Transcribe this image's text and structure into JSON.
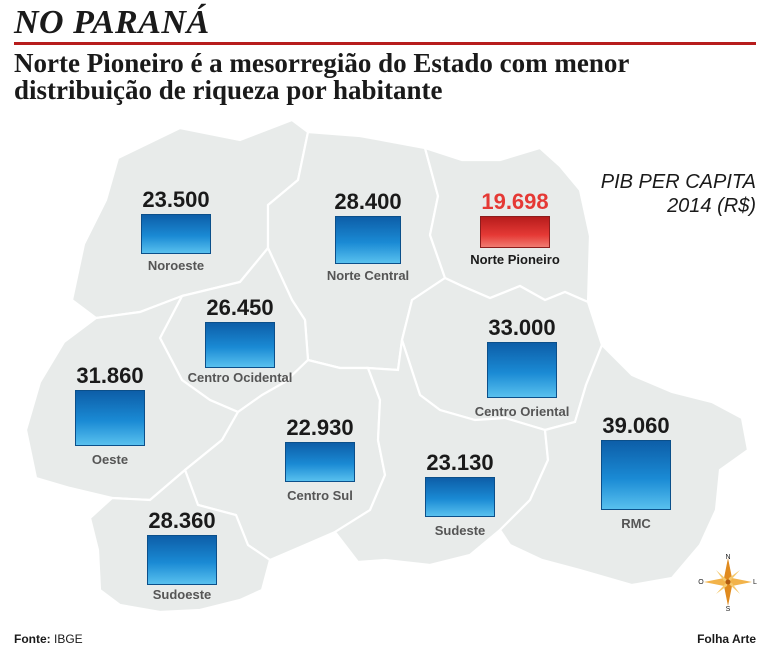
{
  "header": {
    "kicker": "NO PARANÁ",
    "headline": "Norte Pioneiro é a mesorregião do Estado com menor distribuição de riqueza por habitante"
  },
  "legend": {
    "line1": "PIB PER CAPITA",
    "line2": "2014 (R$)"
  },
  "regions": [
    {
      "name": "Noroeste",
      "value": "23.500"
    },
    {
      "name": "Norte Central",
      "value": "28.400"
    },
    {
      "name": "Norte Pioneiro",
      "value": "19.698"
    },
    {
      "name": "Centro Ocidental",
      "value": "26.450"
    },
    {
      "name": "Centro Oriental",
      "value": "33.000"
    },
    {
      "name": "Oeste",
      "value": "31.860"
    },
    {
      "name": "Centro Sul",
      "value": "22.930"
    },
    {
      "name": "Sudeste",
      "value": "23.130"
    },
    {
      "name": "RMC",
      "value": "39.060"
    },
    {
      "name": "Sudoeste",
      "value": "28.360"
    }
  ],
  "chart_data": {
    "type": "bar",
    "title": "PIB PER CAPITA 2014 (R$)",
    "categories": [
      "Noroeste",
      "Norte Central",
      "Norte Pioneiro",
      "Centro Ocidental",
      "Centro Oriental",
      "Oeste",
      "Centro Sul",
      "Sudeste",
      "RMC",
      "Sudoeste"
    ],
    "values": [
      23500,
      28400,
      19698,
      26450,
      33000,
      31860,
      22930,
      23130,
      39060,
      28360
    ],
    "highlight": "Norte Pioneiro",
    "colors": {
      "bar": "#1a7fc9",
      "highlight": "#e53935"
    }
  },
  "compass": {
    "n": "N",
    "s": "S",
    "l": "L",
    "o": "O"
  },
  "footer": {
    "source_label": "Fonte:",
    "source_value": "IBGE",
    "credit": "Folha Arte"
  },
  "colors": {
    "accent_rule": "#b71c1c",
    "map_fill": "#e8ebea"
  }
}
